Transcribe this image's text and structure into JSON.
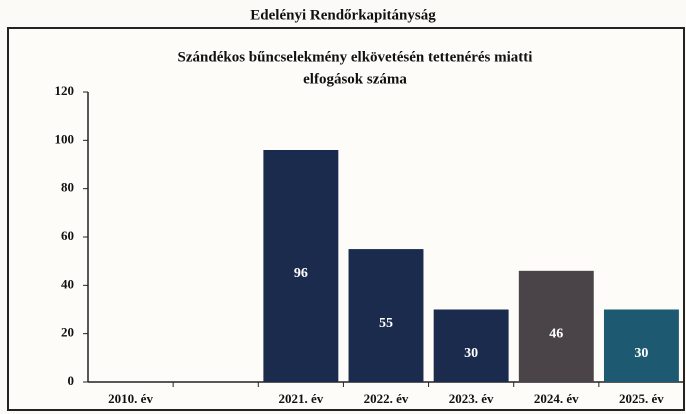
{
  "chart_data": {
    "type": "bar",
    "header": "Edelényi Rendőrkapitányság",
    "title": [
      "Szándékos bűncselekmény elkövetésén tettenérés miatti",
      "elfogások száma"
    ],
    "categories": [
      "2010. év",
      null,
      "2021. év",
      "2022. év",
      "2023. év",
      "2024. év",
      "2025. év"
    ],
    "values": [
      null,
      null,
      96,
      55,
      30,
      46,
      30
    ],
    "colors": [
      "#1b2b4d",
      "#1b2b4d",
      "#1b2b4d",
      "#1b2b4d",
      "#1b2b4d",
      "#4a4347",
      "#1d5a72"
    ],
    "ylim": [
      0,
      120
    ],
    "yticks": [
      0,
      20,
      40,
      60,
      80,
      100,
      120
    ],
    "grid": false
  }
}
